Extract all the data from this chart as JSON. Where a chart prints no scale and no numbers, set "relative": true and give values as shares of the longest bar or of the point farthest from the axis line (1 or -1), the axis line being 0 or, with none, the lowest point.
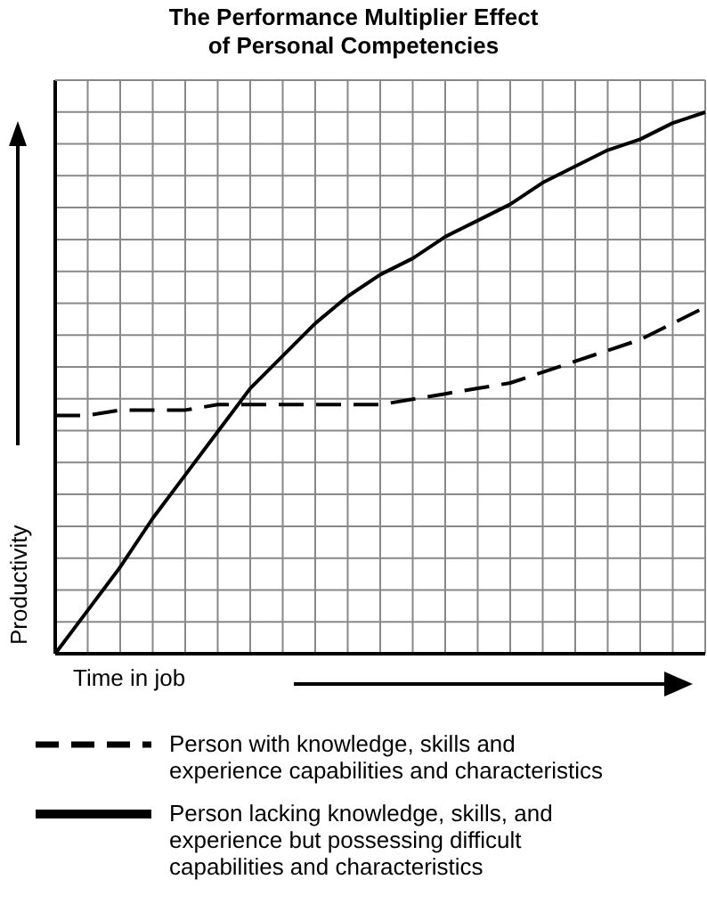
{
  "chart_data": {
    "type": "line",
    "title": "The Performance Multiplier Effect of Personal Competencies",
    "xlabel": "Time in job",
    "ylabel": "Productivity",
    "relative": true,
    "grid": true,
    "legend": "bottom",
    "categories": [
      null,
      null,
      null,
      null,
      null,
      null,
      null,
      null,
      null,
      null,
      null,
      null,
      null,
      null,
      null,
      null,
      null,
      null,
      null,
      null,
      null
    ],
    "series": [
      {
        "name": "Person with knowledge, skills and experience capabilities and characteristics",
        "color": "#000000",
        "line_style": "dashed",
        "values": [
          0.44,
          0.44,
          0.45,
          0.45,
          0.45,
          0.46,
          0.46,
          0.46,
          0.46,
          0.46,
          0.46,
          0.47,
          0.48,
          0.49,
          0.5,
          0.52,
          0.54,
          0.56,
          0.58,
          0.61,
          0.64
        ]
      },
      {
        "name": "Person lacking knowledge, skills, and experience but possessing difficult capabilities and characteristics",
        "color": "#000000",
        "line_style": "solid",
        "values": [
          0,
          0.08,
          0.16,
          0.25,
          0.33,
          0.41,
          0.49,
          0.55,
          0.61,
          0.66,
          0.7,
          0.73,
          0.77,
          0.8,
          0.83,
          0.87,
          0.9,
          0.93,
          0.95,
          0.98,
          1
        ]
      }
    ]
  }
}
